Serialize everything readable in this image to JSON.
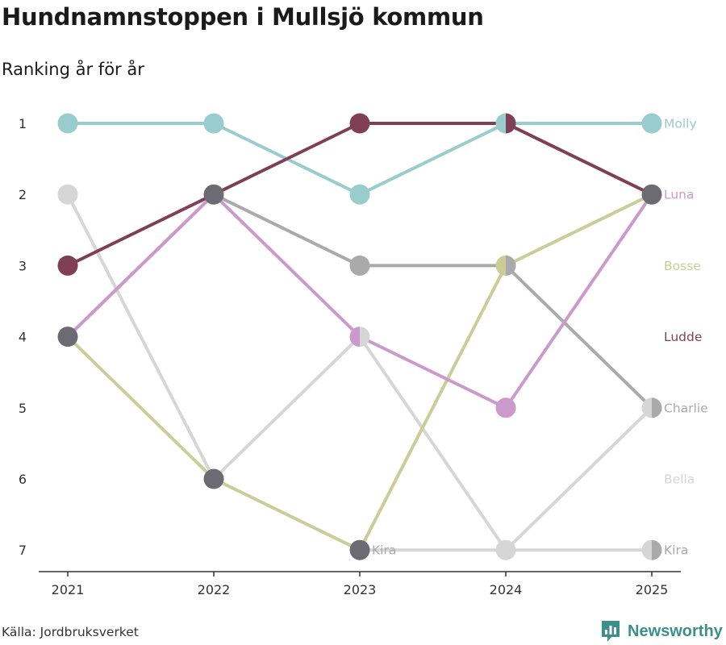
{
  "header": {
    "title": "Hundnamnstoppen i Mullsjö kommun",
    "subtitle": "Ranking år för år"
  },
  "footer": {
    "source": "Källa: Jordbruksverket",
    "brand": "Newsworthy"
  },
  "chart_data": {
    "type": "line",
    "chart_kind": "bump",
    "title": "Hundnamnstoppen i Mullsjö kommun",
    "subtitle": "Ranking år för år",
    "x": [
      2021,
      2022,
      2023,
      2024,
      2025
    ],
    "x_tick_labels": [
      "2021",
      "2022",
      "2023",
      "2024",
      "2025"
    ],
    "y_tick_labels": [
      "1",
      "2",
      "3",
      "4",
      "5",
      "6",
      "7"
    ],
    "ylim": [
      1,
      7
    ],
    "y_inverted": true,
    "xlabel": "",
    "ylabel": "",
    "colors": {
      "tied": "#6c6b74"
    },
    "series": [
      {
        "name": "Bella",
        "color": "#d6d6d6",
        "values": [
          2,
          6,
          4,
          7,
          5
        ]
      },
      {
        "name": "Charlie",
        "color": "#aaaaaa",
        "values": [
          4,
          2,
          3,
          3,
          5
        ]
      },
      {
        "name": "Bosse",
        "color": "#cccc99",
        "values": [
          4,
          6,
          7,
          3,
          2
        ]
      },
      {
        "name": "Luna",
        "color": "#cc99cc",
        "values": [
          4,
          2,
          4,
          5,
          2
        ]
      },
      {
        "name": "Molly",
        "color": "#99cccc",
        "values": [
          1,
          1,
          2,
          1,
          1
        ]
      },
      {
        "name": "Ludde",
        "color": "#7f3f55",
        "values": [
          3,
          2,
          1,
          1,
          2
        ]
      },
      {
        "name": "Kira",
        "color": "#d6d6d6",
        "values": [
          null,
          null,
          7,
          7,
          7
        ]
      }
    ],
    "end_labels": [
      {
        "text": "Molly",
        "rank": 1,
        "color": "#99cccc"
      },
      {
        "text": "Luna",
        "rank": 2,
        "color": "#cc99cc"
      },
      {
        "text": "Bosse",
        "rank": 3,
        "color": "#cccc99"
      },
      {
        "text": "Ludde",
        "rank": 4,
        "color": "#7f3f55"
      },
      {
        "text": "Charlie",
        "rank": 5,
        "color": "#aaaaaa"
      },
      {
        "text": "Bella",
        "rank": 6,
        "color": "#d6d6d6"
      },
      {
        "text": "Kira",
        "rank": 7,
        "color": "#aaaaaa"
      }
    ],
    "annotations": [
      {
        "text": "Kira",
        "year": 2023,
        "rank": 7,
        "color": "#aaaaaa"
      }
    ],
    "markers": [
      {
        "year": 2021,
        "rank": 1,
        "colors": [
          "#99cccc"
        ]
      },
      {
        "year": 2021,
        "rank": 2,
        "colors": [
          "#d6d6d6"
        ]
      },
      {
        "year": 2021,
        "rank": 3,
        "colors": [
          "#7f3f55"
        ]
      },
      {
        "year": 2021,
        "rank": 4,
        "colors": [
          "#6c6b74"
        ]
      },
      {
        "year": 2022,
        "rank": 1,
        "colors": [
          "#99cccc"
        ]
      },
      {
        "year": 2022,
        "rank": 2,
        "colors": [
          "#6c6b74"
        ]
      },
      {
        "year": 2022,
        "rank": 6,
        "colors": [
          "#6c6b74"
        ]
      },
      {
        "year": 2023,
        "rank": 1,
        "colors": [
          "#7f3f55"
        ]
      },
      {
        "year": 2023,
        "rank": 2,
        "colors": [
          "#99cccc"
        ]
      },
      {
        "year": 2023,
        "rank": 3,
        "colors": [
          "#aaaaaa"
        ]
      },
      {
        "year": 2023,
        "rank": 4,
        "colors": [
          "#cc99cc",
          "#d6d6d6"
        ]
      },
      {
        "year": 2023,
        "rank": 7,
        "colors": [
          "#6c6b74"
        ]
      },
      {
        "year": 2024,
        "rank": 1,
        "colors": [
          "#99cccc",
          "#7f3f55"
        ]
      },
      {
        "year": 2024,
        "rank": 3,
        "colors": [
          "#cccc99",
          "#aaaaaa"
        ]
      },
      {
        "year": 2024,
        "rank": 5,
        "colors": [
          "#cc99cc"
        ]
      },
      {
        "year": 2024,
        "rank": 7,
        "colors": [
          "#d6d6d6"
        ]
      },
      {
        "year": 2025,
        "rank": 1,
        "colors": [
          "#99cccc"
        ]
      },
      {
        "year": 2025,
        "rank": 2,
        "colors": [
          "#6c6b74"
        ]
      },
      {
        "year": 2025,
        "rank": 5,
        "colors": [
          "#d6d6d6",
          "#aaaaaa"
        ]
      },
      {
        "year": 2025,
        "rank": 7,
        "colors": [
          "#d6d6d6",
          "#aaaaaa"
        ]
      }
    ]
  }
}
